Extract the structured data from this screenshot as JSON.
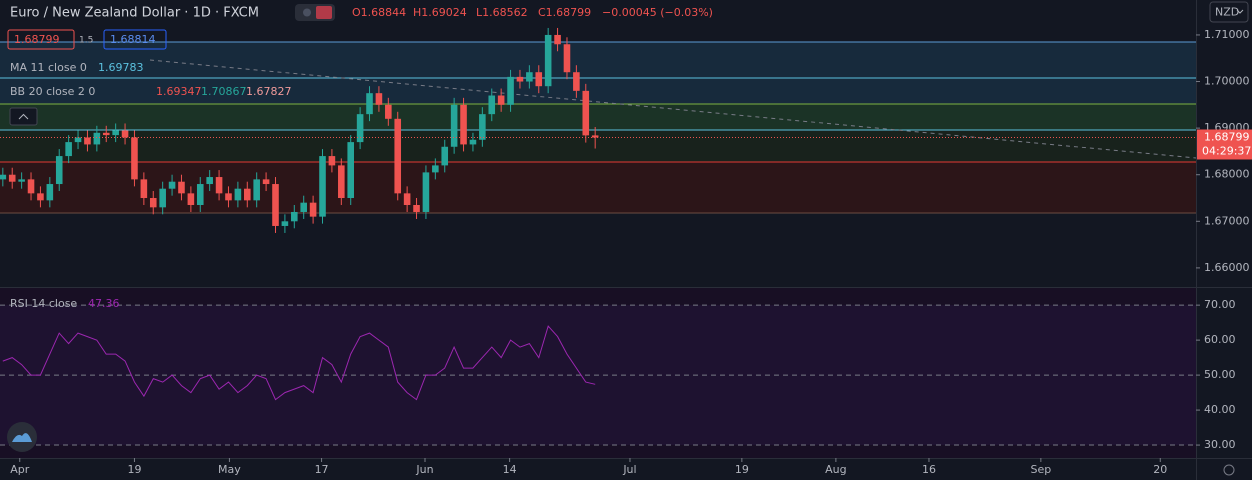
{
  "chart_data": {
    "type": "candlestick",
    "title": "Euro / New Zealand Dollar · 1D · FXCM",
    "ohlc_text": [
      "O1.68844",
      "H1.69024",
      "L1.68562",
      "C1.68799",
      "−0.00045 (−0.03%)"
    ],
    "bid": "1.68799",
    "spread": "1.5",
    "ask": "1.68814",
    "indicators": [
      {
        "name": "MA 11 close 0",
        "values": [
          "1.69783"
        ]
      },
      {
        "name": "BB 20 close 2 0",
        "values": [
          "1.69347",
          "1.70867",
          "1.67827"
        ]
      }
    ],
    "currency": "NZD",
    "countdown": "04:29:37",
    "up_color": "#26a69a",
    "down_color": "#ef5350",
    "open": [
      1.679,
      1.68,
      1.6785,
      1.679,
      1.676,
      1.6745,
      1.678,
      1.684,
      1.687,
      1.688,
      1.6865,
      1.689,
      1.6885,
      1.6895,
      1.688,
      1.679,
      1.675,
      1.673,
      1.677,
      1.6785,
      1.676,
      1.6735,
      1.678,
      1.6795,
      1.676,
      1.6745,
      1.677,
      1.6745,
      1.679,
      1.678,
      1.669,
      1.67,
      1.672,
      1.674,
      1.671,
      1.684,
      1.682,
      1.675,
      1.687,
      1.693,
      1.6975,
      1.695,
      1.692,
      1.676,
      1.6735,
      1.672,
      1.6805,
      1.682,
      1.686,
      1.695,
      1.6865,
      1.6875,
      1.693,
      1.697,
      1.695,
      1.701,
      1.7,
      1.702,
      1.699,
      1.71,
      1.708,
      1.702,
      1.698,
      1.68844
    ],
    "high": [
      1.6815,
      1.6815,
      1.6805,
      1.6805,
      1.6775,
      1.6795,
      1.6855,
      1.6885,
      1.6895,
      1.6895,
      1.6905,
      1.6905,
      1.691,
      1.691,
      1.6895,
      1.6805,
      1.6765,
      1.6785,
      1.68,
      1.68,
      1.6775,
      1.6795,
      1.681,
      1.681,
      1.6775,
      1.6785,
      1.6785,
      1.6805,
      1.6805,
      1.6795,
      1.6715,
      1.6735,
      1.6755,
      1.6755,
      1.6855,
      1.6855,
      1.6835,
      1.6885,
      1.6945,
      1.699,
      1.699,
      1.6965,
      1.6935,
      1.6775,
      1.675,
      1.682,
      1.6835,
      1.6875,
      1.6965,
      1.6965,
      1.689,
      1.6945,
      1.6985,
      1.6985,
      1.7025,
      1.7025,
      1.7035,
      1.7035,
      1.7115,
      1.7115,
      1.7095,
      1.7035,
      1.6995,
      1.69024
    ],
    "low": [
      1.6775,
      1.677,
      1.677,
      1.6745,
      1.673,
      1.673,
      1.6765,
      1.6825,
      1.6855,
      1.685,
      1.685,
      1.687,
      1.687,
      1.6865,
      1.6775,
      1.6735,
      1.6715,
      1.6715,
      1.6755,
      1.6745,
      1.672,
      1.672,
      1.6765,
      1.6745,
      1.673,
      1.673,
      1.673,
      1.673,
      1.6765,
      1.6675,
      1.6675,
      1.6685,
      1.6705,
      1.6695,
      1.6695,
      1.6805,
      1.6735,
      1.6735,
      1.6855,
      1.6915,
      1.6935,
      1.6905,
      1.6745,
      1.672,
      1.6705,
      1.6705,
      1.679,
      1.6805,
      1.6845,
      1.685,
      1.685,
      1.686,
      1.6915,
      1.6935,
      1.6935,
      1.6985,
      1.6985,
      1.6975,
      1.6975,
      1.7065,
      1.7005,
      1.6965,
      1.6869,
      1.68562
    ],
    "close": [
      1.68,
      1.6785,
      1.679,
      1.676,
      1.6745,
      1.678,
      1.684,
      1.687,
      1.688,
      1.6865,
      1.689,
      1.6885,
      1.6895,
      1.688,
      1.679,
      1.675,
      1.673,
      1.677,
      1.6785,
      1.676,
      1.6735,
      1.678,
      1.6795,
      1.676,
      1.6745,
      1.677,
      1.6745,
      1.679,
      1.678,
      1.669,
      1.67,
      1.672,
      1.674,
      1.671,
      1.684,
      1.682,
      1.675,
      1.687,
      1.693,
      1.6975,
      1.695,
      1.692,
      1.676,
      1.6735,
      1.672,
      1.6805,
      1.682,
      1.686,
      1.695,
      1.6865,
      1.6875,
      1.693,
      1.697,
      1.695,
      1.701,
      1.7,
      1.702,
      1.699,
      1.71,
      1.708,
      1.702,
      1.698,
      1.68844,
      1.68799
    ],
    "ylim": [
      1.6559,
      1.7175
    ],
    "yticks": [
      {
        "value": 1.66,
        "label": "1.66000"
      },
      {
        "value": 1.67,
        "label": "1.67000"
      },
      {
        "value": 1.68,
        "label": "1.68000"
      },
      {
        "value": 1.69,
        "label": "1.69000"
      },
      {
        "value": 1.7,
        "label": "1.70000"
      },
      {
        "value": 1.71,
        "label": "1.71000"
      }
    ],
    "xlim": [
      -0.3,
      126.9
    ],
    "xticks": [
      {
        "value": 1.8,
        "label": "Apr"
      },
      {
        "value": 14,
        "label": "19"
      },
      {
        "value": 24.1,
        "label": "May"
      },
      {
        "value": 33.9,
        "label": "17"
      },
      {
        "value": 44.9,
        "label": "Jun"
      },
      {
        "value": 53.9,
        "label": "14"
      },
      {
        "value": 66.7,
        "label": "Jul"
      },
      {
        "value": 78.6,
        "label": "19"
      },
      {
        "value": 88.6,
        "label": "Aug"
      },
      {
        "value": 98.5,
        "label": "16"
      },
      {
        "value": 110.4,
        "label": "Sep"
      },
      {
        "value": 123.1,
        "label": "20"
      }
    ],
    "rsi": {
      "name": "RSI 14 close",
      "color": "#9c27b0",
      "values": [
        54,
        55,
        53,
        50,
        50,
        56,
        62,
        59,
        62,
        61,
        60,
        56,
        56,
        54,
        48,
        44,
        49,
        48,
        50,
        47,
        45,
        49,
        50,
        46,
        48,
        45,
        47,
        50,
        49,
        43,
        45,
        46,
        47,
        45,
        55,
        53,
        48,
        56,
        61,
        62,
        60,
        58,
        48,
        45,
        43,
        50,
        50,
        52,
        58,
        52,
        52,
        55,
        58,
        55,
        60,
        58,
        59,
        55,
        64,
        61,
        56,
        52,
        48,
        47.36
      ],
      "ylim": [
        26.3,
        74.9
      ],
      "yticks": [
        {
          "value": 70,
          "label": "70.00"
        },
        {
          "value": 60,
          "label": "60.00"
        },
        {
          "value": 50,
          "label": "50.00"
        },
        {
          "value": 40,
          "label": "40.00"
        },
        {
          "value": 30,
          "label": "30.00"
        }
      ]
    }
  }
}
